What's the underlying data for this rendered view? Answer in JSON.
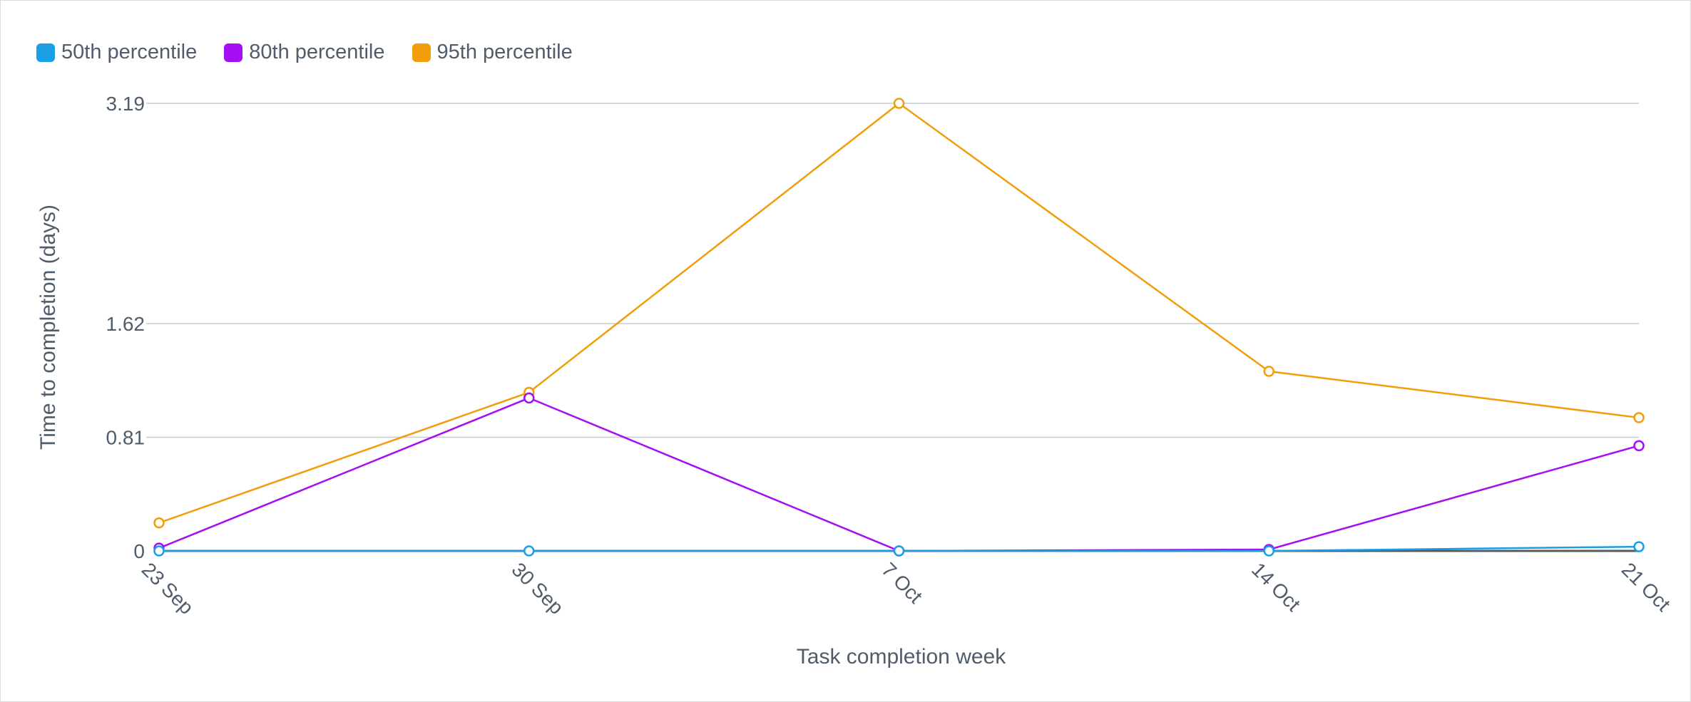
{
  "chart_data": {
    "type": "line",
    "xlabel": "Task completion week",
    "ylabel": "Time to completion (days)",
    "categories": [
      "23 Sep",
      "30 Sep",
      "7 Oct",
      "14 Oct",
      "21 Oct"
    ],
    "yticks": [
      "0",
      "0.81",
      "1.62",
      "3.19"
    ],
    "ytick_values": [
      0,
      0.81,
      1.62,
      3.19
    ],
    "ylim": [
      0,
      3.19
    ],
    "grid": true,
    "legend_position": "top-left",
    "series": [
      {
        "name": "50th percentile",
        "color": "#1a9ee6",
        "values": [
          0.0,
          0.0,
          0.0,
          0.0,
          0.03
        ]
      },
      {
        "name": "80th percentile",
        "color": "#a50df2",
        "values": [
          0.02,
          1.09,
          0.0,
          0.01,
          0.75
        ]
      },
      {
        "name": "95th percentile",
        "color": "#f29d0c",
        "values": [
          0.2,
          1.13,
          3.19,
          1.28,
          0.95
        ]
      }
    ]
  }
}
